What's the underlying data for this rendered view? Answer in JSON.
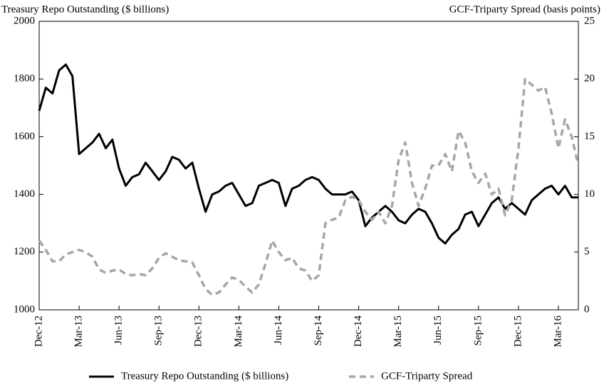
{
  "chart_data": {
    "type": "line",
    "y_label": "Treasury Repo Outstanding ($ billions)",
    "y2_label": "GCF-Triparty Spread (basis points)",
    "categories": [
      "Dec-12",
      null,
      null,
      null,
      null,
      null,
      "Mar-13",
      null,
      null,
      null,
      null,
      null,
      "Jun-13",
      null,
      null,
      null,
      null,
      null,
      "Sep-13",
      null,
      null,
      null,
      null,
      null,
      "Dec-13",
      null,
      null,
      null,
      null,
      null,
      "Mar-14",
      null,
      null,
      null,
      null,
      null,
      "Jun-14",
      null,
      null,
      null,
      null,
      null,
      "Sep-14",
      null,
      null,
      null,
      null,
      null,
      "Dec-14",
      null,
      null,
      null,
      null,
      null,
      "Mar-15",
      null,
      null,
      null,
      null,
      null,
      "Jun-15",
      null,
      null,
      null,
      null,
      null,
      "Sep-15",
      null,
      null,
      null,
      null,
      null,
      "Dec-15",
      null,
      null,
      null,
      null,
      null,
      "Mar-16",
      null,
      null,
      null
    ],
    "series": [
      {
        "name": "Treasury Repo Outstanding ($ billions)",
        "color": "#000000",
        "dash": false,
        "values": [
          1690,
          1770,
          1750,
          1830,
          1850,
          1810,
          1540,
          1560,
          1580,
          1610,
          1560,
          1590,
          1490,
          1430,
          1460,
          1470,
          1510,
          1480,
          1450,
          1480,
          1530,
          1520,
          1490,
          1510,
          1420,
          1340,
          1400,
          1410,
          1430,
          1440,
          1400,
          1360,
          1370,
          1430,
          1440,
          1450,
          1440,
          1360,
          1420,
          1430,
          1450,
          1460,
          1450,
          1420,
          1400,
          1400,
          1400,
          1410,
          1380,
          1290,
          1320,
          1340,
          1360,
          1340,
          1310,
          1300,
          1330,
          1350,
          1340,
          1300,
          1250,
          1230,
          1260,
          1280,
          1330,
          1340,
          1290,
          1330,
          1370,
          1390,
          1350,
          1370,
          1350,
          1330,
          1380,
          1400,
          1420,
          1430,
          1400,
          1430,
          1390,
          1390
        ]
      },
      {
        "name": "GCF-Triparty Spread",
        "color": "#a6a6a6",
        "dash": true,
        "axis": "y2",
        "values": [
          6,
          5.2,
          4.2,
          4.2,
          4.8,
          5,
          5.2,
          5,
          4.6,
          3.5,
          3.2,
          3.4,
          3.5,
          3.1,
          3,
          3.1,
          3,
          3.6,
          4.5,
          4.9,
          4.6,
          4.3,
          4.2,
          4.1,
          3,
          1.8,
          1.3,
          1.5,
          2.2,
          2.8,
          2.6,
          2,
          1.5,
          2.2,
          4,
          6,
          5,
          4.3,
          4.5,
          3.6,
          3.4,
          2.5,
          3,
          7.5,
          7.8,
          8,
          9.5,
          9.8,
          9.5,
          8.5,
          7.8,
          8.5,
          7.5,
          9,
          13,
          14.5,
          11,
          9,
          10.5,
          12.5,
          12.5,
          13.5,
          12,
          15.5,
          14.5,
          12,
          11,
          11.8,
          10,
          10.5,
          8.2,
          9.5,
          14,
          20,
          19.5,
          19,
          19.3,
          17,
          14,
          16.5,
          15,
          12.5
        ]
      }
    ],
    "ylim": [
      1000,
      2000
    ],
    "yticks": [
      1000,
      1200,
      1400,
      1600,
      1800,
      2000
    ],
    "y2lim": [
      0,
      25
    ],
    "y2ticks": [
      0,
      5,
      10,
      15,
      20,
      25
    ],
    "grid": false,
    "legend": "bottom"
  }
}
